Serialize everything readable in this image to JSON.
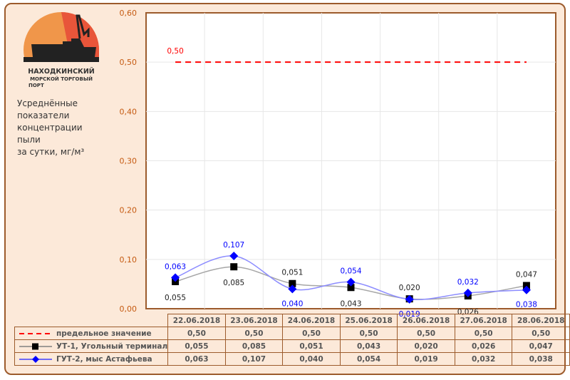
{
  "logo": {
    "line1": "НАХОДКИНСКИЙ",
    "line2": "МОРСКОЙ ТОРГОВЫЙ",
    "line3": "ПОРТ"
  },
  "subtitle": [
    "Усреднённые",
    "показатели",
    "концентрации",
    "пыли",
    "за сутки, мг/м³"
  ],
  "colors": {
    "limit": "#ff0000",
    "ut1": "#000000",
    "ut1_line": "#a6a6a6",
    "gut2": "#0000ff",
    "gut2_line": "#8c8cff",
    "axis_text": "#c55a11"
  },
  "chart_data": {
    "type": "line",
    "categories": [
      "22.06.2018",
      "23.06.2018",
      "24.06.2018",
      "25.06.2018",
      "26.06.2018",
      "27.06.2018",
      "28.06.2018"
    ],
    "ylim": [
      0,
      0.6
    ],
    "yticks": [
      "0,00",
      "0,10",
      "0,20",
      "0,30",
      "0,40",
      "0,50",
      "0,60"
    ],
    "series": [
      {
        "name": "предельное значение",
        "values": [
          0.5,
          0.5,
          0.5,
          0.5,
          0.5,
          0.5,
          0.5
        ],
        "labels": [
          "0,50",
          "0,50",
          "0,50",
          "0,50",
          "0,50",
          "0,50",
          "0,50"
        ],
        "chart_label": "0,50"
      },
      {
        "name": "УТ-1, Угольный терминал",
        "values": [
          0.055,
          0.085,
          0.051,
          0.043,
          0.02,
          0.026,
          0.047
        ],
        "labels": [
          "0,055",
          "0,085",
          "0,051",
          "0,043",
          "0,020",
          "0,026",
          "0,047"
        ]
      },
      {
        "name": "ГУТ-2, мыс Астафьева",
        "values": [
          0.063,
          0.107,
          0.04,
          0.054,
          0.019,
          0.032,
          0.038
        ],
        "labels": [
          "0,063",
          "0,107",
          "0,040",
          "0,054",
          "0,019",
          "0,032",
          "0,038"
        ]
      }
    ]
  }
}
